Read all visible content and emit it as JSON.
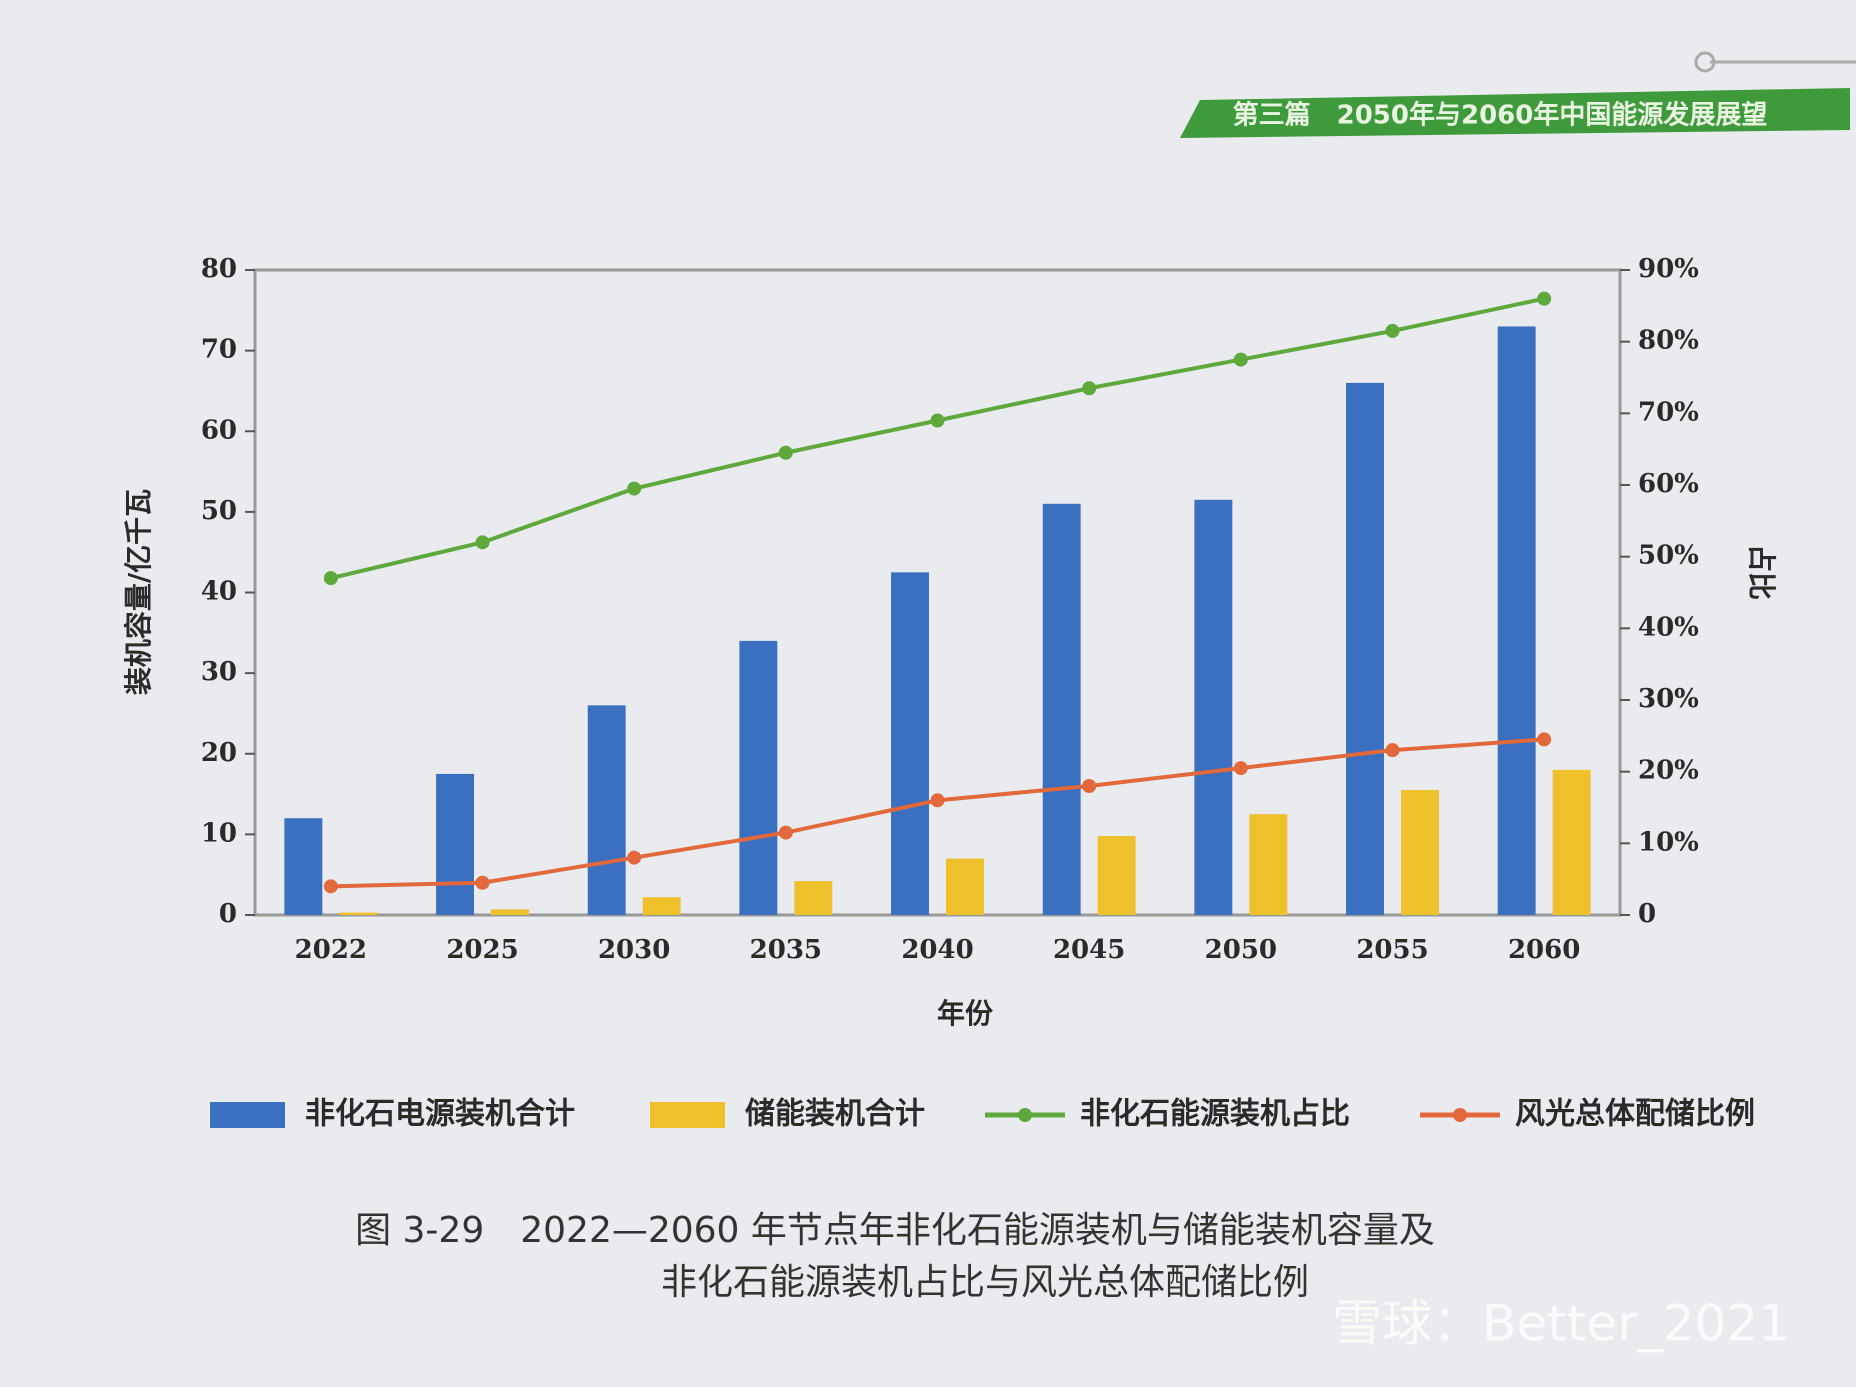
{
  "header": "第三篇　2050年与2060年中国能源发展展望",
  "caption": [
    "图 3-29　2022—2060 年节点年非化石能源装机与储能装机容量及",
    "非化石能源装机占比与风光总体配储比例"
  ],
  "watermark": "雪球：Better_2021",
  "chart_data": {
    "type": "bar",
    "xlabel": "年份",
    "ylabel": "装机容量/亿千瓦",
    "y2label": "占比",
    "categories": [
      "2022",
      "2025",
      "2030",
      "2035",
      "2040",
      "2045",
      "2050",
      "2055",
      "2060"
    ],
    "series": [
      {
        "name": "非化石电源装机合计",
        "type": "bar",
        "color": "#3b6fbf",
        "values": [
          12,
          17.5,
          26,
          34,
          42.5,
          51,
          51.5,
          66,
          73
        ]
      },
      {
        "name": "储能装机合计",
        "type": "bar",
        "color": "#eec02c",
        "values": [
          0.3,
          0.7,
          2.2,
          4.2,
          7,
          9.8,
          12.5,
          15.5,
          18
        ]
      },
      {
        "name": "非化石能源装机占比",
        "type": "line",
        "axis": "y2",
        "color": "#5ea83c",
        "values": [
          47,
          52,
          59.5,
          64.5,
          69,
          73.5,
          77.5,
          81.5,
          86
        ]
      },
      {
        "name": "风光总体配储比例",
        "type": "line",
        "axis": "y2",
        "color": "#e2693c",
        "values": [
          4,
          4.5,
          8,
          11.5,
          16,
          18,
          20.5,
          23,
          24.5
        ]
      }
    ],
    "ylim": [
      0,
      80
    ],
    "yticks": [
      0,
      10,
      20,
      30,
      40,
      50,
      60,
      70,
      80
    ],
    "y2lim": [
      0,
      90
    ],
    "y2ticks": [
      0,
      {
        "value": 10,
        "label": "10%"
      },
      {
        "value": 20,
        "label": "20%"
      },
      {
        "value": 30,
        "label": "30%"
      },
      {
        "value": 40,
        "label": "40%"
      },
      {
        "value": 50,
        "label": "50%"
      },
      {
        "value": 60,
        "label": "60%"
      },
      {
        "value": 70,
        "label": "70%"
      },
      {
        "value": 80,
        "label": "80%"
      },
      {
        "value": 90,
        "label": "90%"
      }
    ],
    "legend": "bottom"
  }
}
